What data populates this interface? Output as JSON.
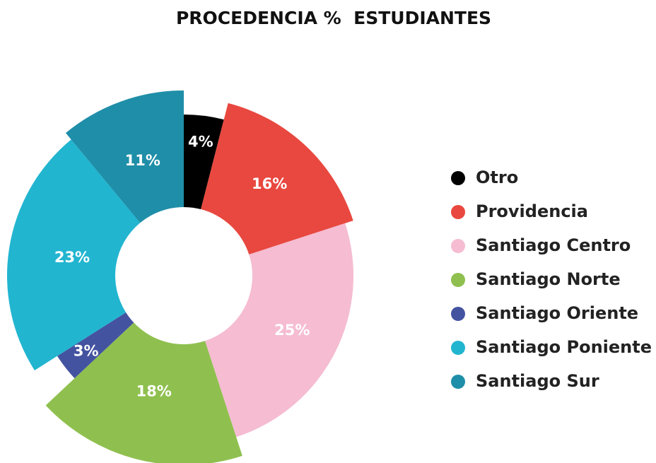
{
  "chart_data": {
    "type": "pie",
    "title": "PROCEDENCIA %  ESTUDIANTES",
    "categories": [
      "Otro",
      "Providencia",
      "Santiago Centro",
      "Santiago Norte",
      "Santiago Oriente",
      "Santiago Poniente",
      "Santiago Sur"
    ],
    "values": [
      4,
      16,
      25,
      18,
      3,
      23,
      11
    ],
    "value_labels": [
      "4%",
      "16%",
      "25%",
      "18%",
      "3%",
      "23%",
      "11%"
    ],
    "colors": [
      "#000000",
      "#e8483f",
      "#f5bcd2",
      "#8fc04f",
      "#4453a0",
      "#21b5d0",
      "#1f8ea8"
    ],
    "legend": "right"
  }
}
